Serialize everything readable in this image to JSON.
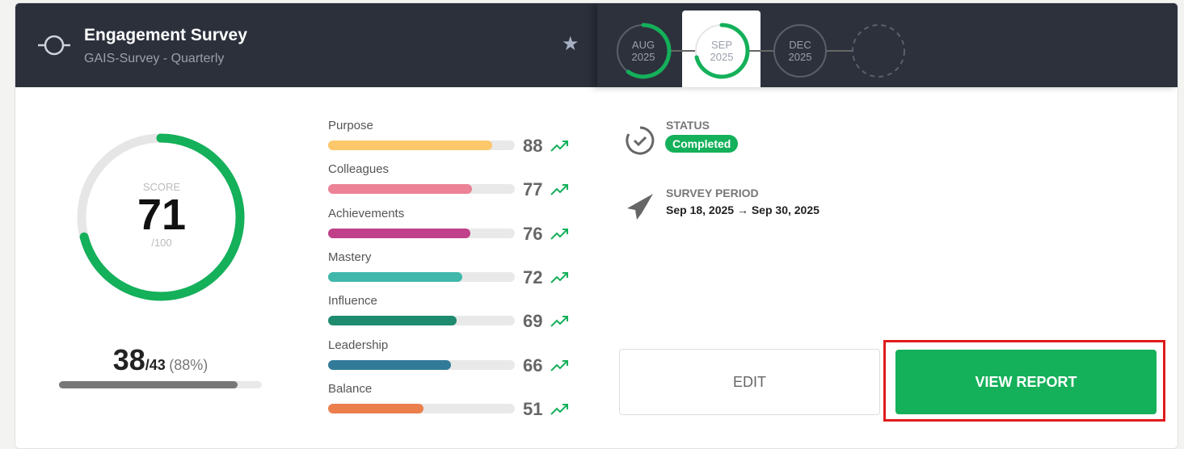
{
  "header": {
    "title": "Engagement Survey",
    "subtitle": "GAIS-Survey - Quarterly"
  },
  "timeline": [
    {
      "month": "AUG",
      "year": "2025",
      "progress": 0.6
    },
    {
      "month": "SEP",
      "year": "2025",
      "progress": 0.71,
      "selected": true
    },
    {
      "month": "DEC",
      "year": "2025",
      "progress": 0
    },
    {
      "month": "",
      "year": "",
      "progress": 0
    }
  ],
  "score": {
    "label": "SCORE",
    "value": "71",
    "max": "/100",
    "fraction": 0.71
  },
  "responses": {
    "count": "38",
    "total": "/43",
    "percent": "(88%)",
    "fraction": 0.88
  },
  "categories": [
    {
      "label": "Purpose",
      "value": "88",
      "color": "#fbc96b"
    },
    {
      "label": "Colleagues",
      "value": "77",
      "color": "#ec8296"
    },
    {
      "label": "Achievements",
      "value": "76",
      "color": "#c0408a"
    },
    {
      "label": "Mastery",
      "value": "72",
      "color": "#3fb8ab"
    },
    {
      "label": "Influence",
      "value": "69",
      "color": "#1e8a6e"
    },
    {
      "label": "Leadership",
      "value": "66",
      "color": "#317b98"
    },
    {
      "label": "Balance",
      "value": "51",
      "color": "#ea7f4c"
    }
  ],
  "status": {
    "label": "STATUS",
    "value": "Completed"
  },
  "period": {
    "label": "SURVEY PERIOD",
    "value": "Sep 18, 2025 → Sep 30, 2025"
  },
  "buttons": {
    "edit": "EDIT",
    "view": "VIEW REPORT"
  },
  "colors": {
    "accent": "#14b05a",
    "header": "#2b303b"
  }
}
